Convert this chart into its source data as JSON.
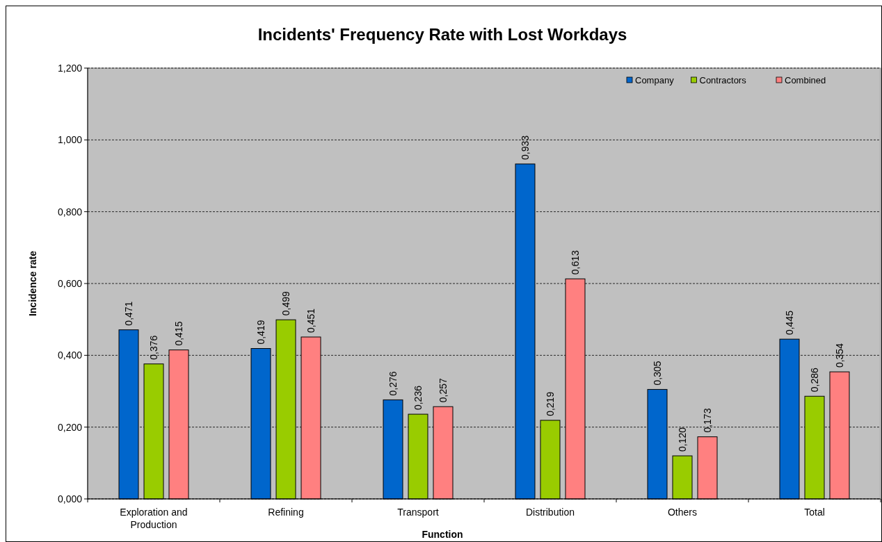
{
  "chart_data": {
    "type": "bar",
    "title": "Incidents' Frequency Rate with Lost Workdays",
    "xlabel": "Function",
    "ylabel": "Incidence rate",
    "categories": [
      "Exploration and Production",
      "Refining",
      "Transport",
      "Distribution",
      "Others",
      "Total"
    ],
    "series": [
      {
        "name": "Company",
        "color": "#0066cc",
        "values": [
          0.471,
          0.419,
          0.276,
          0.933,
          0.305,
          0.445
        ],
        "value_labels": [
          "0,471",
          "0,419",
          "0,276",
          "0,933",
          "0,305",
          "0,445"
        ]
      },
      {
        "name": "Contractors",
        "color": "#99cc00",
        "values": [
          0.376,
          0.499,
          0.236,
          0.219,
          0.12,
          0.286
        ],
        "value_labels": [
          "0,376",
          "0,499",
          "0,236",
          "0,219",
          "0,120",
          "0,286"
        ]
      },
      {
        "name": "Combined",
        "color": "#ff8080",
        "values": [
          0.415,
          0.451,
          0.257,
          0.613,
          0.173,
          0.354
        ],
        "value_labels": [
          "0,415",
          "0,451",
          "0,257",
          "0,613",
          "0,173",
          "0,354"
        ]
      }
    ],
    "ylim": [
      0,
      1.2
    ],
    "yticks": [
      {
        "value": 0,
        "label": "0,000"
      },
      {
        "value": 0.2,
        "label": "0,200"
      },
      {
        "value": 0.4,
        "label": "0,400"
      },
      {
        "value": 0.6,
        "label": "0,600"
      },
      {
        "value": 0.8,
        "label": "0,800"
      },
      {
        "value": 1,
        "label": "1,000"
      },
      {
        "value": 1.2,
        "label": "1,200"
      }
    ],
    "grid": "y",
    "legend": "top right"
  }
}
